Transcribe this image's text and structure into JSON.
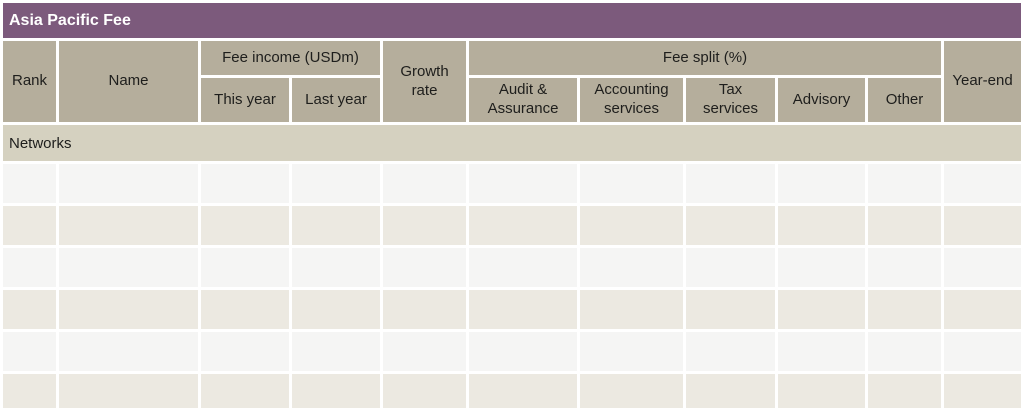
{
  "title": "Asia Pacific Fee",
  "table": {
    "headers": {
      "rank": "Rank",
      "name": "Name",
      "fee_income_group": "Fee income (USDm)",
      "this_year": "This year",
      "last_year": "Last year",
      "growth_rate": "Growth rate",
      "fee_split_group": "Fee split (%)",
      "audit_assurance": "Audit & Assurance",
      "accounting_services": "Accounting services",
      "tax_services": "Tax services",
      "advisory": "Advisory",
      "other": "Other",
      "year_end": "Year-end"
    },
    "section_label": "Networks",
    "body_rows": [
      [
        "",
        "",
        "",
        "",
        "",
        "",
        "",
        "",
        "",
        "",
        ""
      ],
      [
        "",
        "",
        "",
        "",
        "",
        "",
        "",
        "",
        "",
        "",
        ""
      ],
      [
        "",
        "",
        "",
        "",
        "",
        "",
        "",
        "",
        "",
        "",
        ""
      ],
      [
        "",
        "",
        "",
        "",
        "",
        "",
        "",
        "",
        "",
        "",
        ""
      ],
      [
        "",
        "",
        "",
        "",
        "",
        "",
        "",
        "",
        "",
        "",
        ""
      ],
      [
        "",
        "",
        "",
        "",
        "",
        "",
        "",
        "",
        "",
        "",
        ""
      ]
    ]
  },
  "colors": {
    "title_bar": "#7c5a7c",
    "title_text": "#ffffff",
    "header_background": "#b5ae9c",
    "section_row_background": "#d5d1c0",
    "row_alternate_light": "#f5f5f4",
    "row_alternate_beige": "#ece9e1",
    "body_text": "#1e1e1c"
  }
}
